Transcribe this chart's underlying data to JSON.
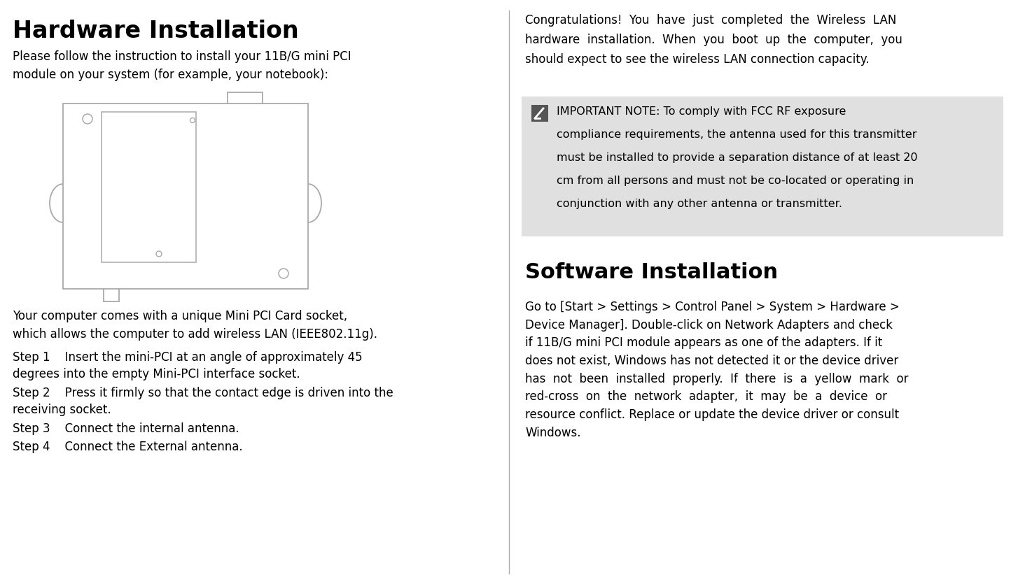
{
  "title": "Hardware Installation",
  "intro_text": "Please follow the instruction to install your 11B/G mini PCI\nmodule on your system (for example, your notebook):",
  "body_text_left": "Your computer comes with a unique Mini PCI Card socket,\nwhich allows the computer to add wireless LAN (IEEE802.11g).",
  "step1": "Step 1    Insert the mini-PCI at an angle of approximately 45\ndegrees into the empty Mini-PCI interface socket.",
  "step2": "Step 2    Press it firmly so that the contact edge is driven into the\nreceiving socket.",
  "step3": "Step 3    Connect the internal antenna.",
  "step4": "Step 4    Connect the External antenna.",
  "congrats_text": "Congratulations!  You  have  just  completed  the  Wireless  LAN\nhardware  installation.  When  you  boot  up  the  computer,  you\nshould expect to see the wireless LAN connection capacity.",
  "important_note_line1": "IMPORTANT NOTE: To comply with FCC RF exposure",
  "important_note_line2": "compliance requirements, the antenna used for this transmitter",
  "important_note_line3": "must be installed to provide a separation distance of at least 20",
  "important_note_line4": "cm from all persons and must not be co-located or operating in",
  "important_note_line5": "conjunction with any other antenna or transmitter.",
  "software_title": "Software Installation",
  "software_text": "Go to [Start > Settings > Control Panel > System > Hardware >\nDevice Manager]. Double-click on Network Adapters and check\nif 11B/G mini PCI module appears as one of the adapters. If it\ndoes not exist, Windows has not detected it or the device driver\nhas  not  been  installed  properly.  If  there  is  a  yellow  mark  or\nred-cross  on  the  network  adapter,  it  may  be  a  device  or\nresource conflict. Replace or update the device driver or consult\nWindows.",
  "bg_color": "#ffffff",
  "text_color": "#000000",
  "note_bg_color": "#e0e0e0",
  "divider_color": "#aaaaaa",
  "card_color": "#aaaaaa",
  "icon_dark": "#555555"
}
